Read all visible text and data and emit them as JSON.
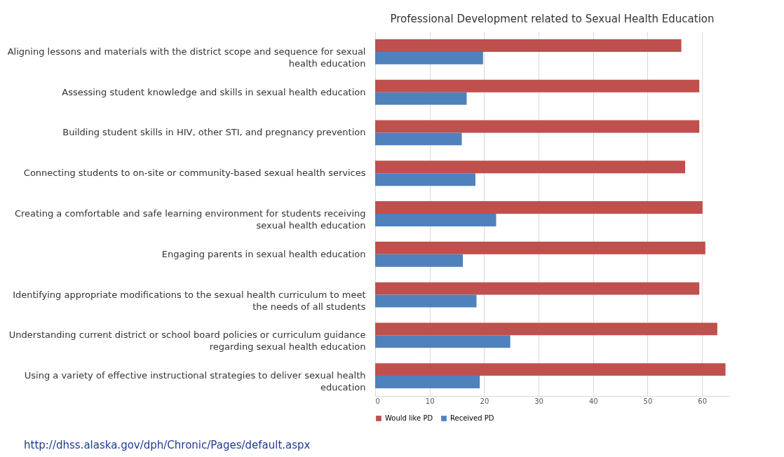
{
  "chart_data": {
    "type": "bar",
    "orientation": "horizontal",
    "title": "Professional Development related to Sexual Health Education",
    "categories": [
      "Aligning lessons and materials with the district scope and sequence for sexual health education",
      "Assessing student knowledge and skills in sexual health education",
      "Building student skills in HIV, other STI, and pregnancy prevention",
      "Connecting students to on-site or community-based sexual health services",
      "Creating a comfortable and safe learning environment for students receiving sexual health education",
      "Engaging parents in sexual health education",
      "Identifying appropriate modifications to the sexual health curriculum to meet the needs of all students",
      "Understanding current district or school board policies or curriculum guidance regarding sexual health education",
      "Using a variety of effective instructional strategies to deliver sexual health education"
    ],
    "series": [
      {
        "name": "Would like PD",
        "color": "#c0504d",
        "values": [
          56.2,
          59.5,
          59.5,
          56.9,
          60.1,
          60.6,
          59.5,
          62.8,
          64.3
        ]
      },
      {
        "name": "Received PD",
        "color": "#4f81bd",
        "values": [
          19.8,
          16.8,
          15.9,
          18.4,
          22.2,
          16.1,
          18.6,
          24.8,
          19.2
        ]
      }
    ],
    "xlim": [
      0,
      65
    ],
    "xticks": [
      0,
      10,
      20,
      30,
      40,
      50,
      60
    ],
    "grid": "x",
    "legend": "bottom",
    "annotations": [
      "http://dhss.alaska.gov/dph/Chronic/Pages/default.aspx"
    ]
  }
}
